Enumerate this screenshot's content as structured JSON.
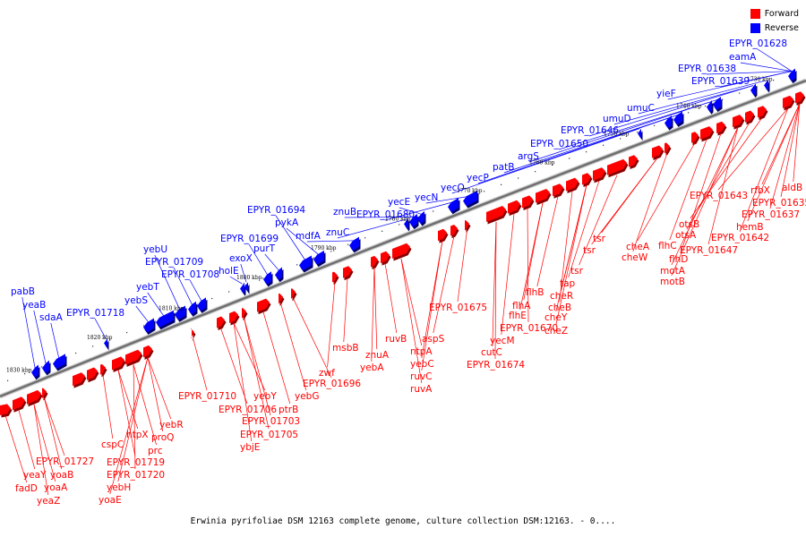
{
  "legend": {
    "forward_label": "Forward",
    "reverse_label": "Reverse",
    "forward_color": "#ff0000",
    "reverse_color": "#0000ff"
  },
  "caption": "Erwinia pyrifoliae DSM 12163 complete genome, culture collection DSM:12163. - 0....",
  "ticks": [
    "1830 kbp",
    "1820 kbp",
    "1810 kbp",
    "1800 kbp",
    "1790 kbp",
    "1780 kbp",
    "1770 kbp",
    "1760 kbp",
    "1750 kbp",
    "1740 kbp",
    "1730 kbp"
  ],
  "reverse_genes": [
    "pabB",
    "yeaB",
    "sdaA",
    "EPYR_01718",
    "yebT",
    "yebS",
    "yebU",
    "EPYR_01709",
    "EPYR_01708",
    "exoX",
    "holE",
    "EPYR_01699",
    "purT",
    "EPYR_01694",
    "pykA",
    "mdfA",
    "znuB",
    "znuC",
    "yecE",
    "EPYR_01680",
    "yecN",
    "yecO",
    "yecP",
    "patB",
    "argS",
    "EPYR_01650",
    "EPYR_01646",
    "umuD",
    "umuC",
    "yieF",
    "EPYR_01638",
    "EPYR_01639",
    "eamA",
    "EPYR_01628"
  ],
  "forward_genes": [
    "EPYR_01727",
    "yeaY",
    "fadD",
    "yoaB",
    "yoaA",
    "yeaZ",
    "cspC",
    "EPYR_01719",
    "EPYR_01720",
    "yebH",
    "yoaE",
    "htpX",
    "prc",
    "proQ",
    "yebR",
    "EPYR_01710",
    "EPYR_01706",
    "yebY",
    "EPYR_01703",
    "EPYR_01705",
    "ybjE",
    "ptrB",
    "yebG",
    "EPYR_01696",
    "zwf",
    "msbB",
    "znuA",
    "yebA",
    "ruvB",
    "ntpA",
    "yebC",
    "ruvC",
    "ruvA",
    "aspS",
    "EPYR_01675",
    "cutC",
    "EPYR_01674",
    "yecM",
    "EPYR_01670",
    "flhE",
    "flhA",
    "flhB",
    "cheB",
    "cheY",
    "cheZ",
    "cheR",
    "tap",
    "tsr",
    "tsr",
    "tsr",
    "cheW",
    "cheA",
    "flhC",
    "flhD",
    "motA",
    "motB",
    "otsA",
    "otsB",
    "EPYR_01647",
    "EPYR_01643",
    "EPYR_01642",
    "hemB",
    "EPYR_01637",
    "rfbX",
    "EPYR_01635",
    "aldB"
  ]
}
